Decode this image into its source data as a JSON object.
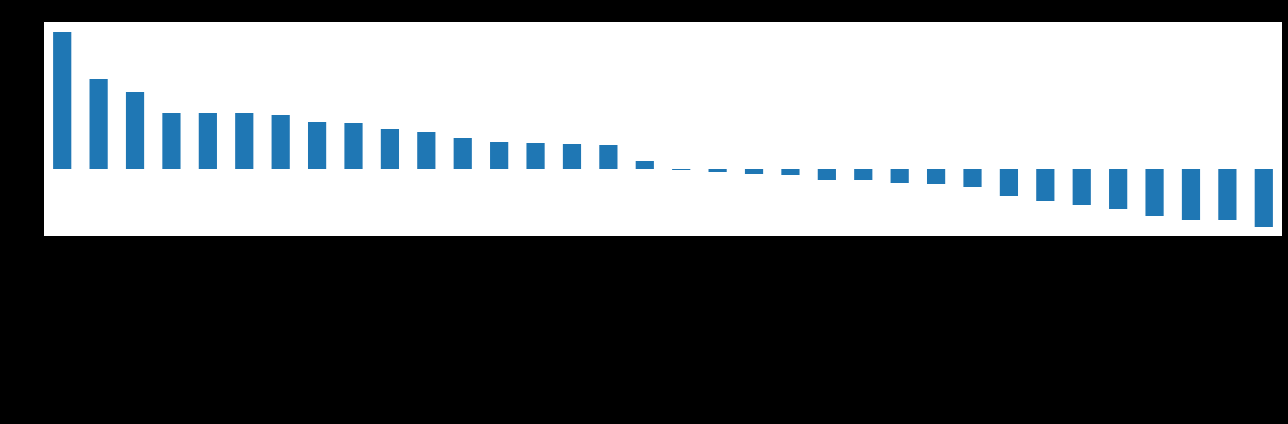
{
  "chart_data": {
    "type": "bar",
    "categories": [
      null,
      null,
      null,
      null,
      null,
      null,
      null,
      null,
      null,
      null,
      null,
      null,
      null,
      null,
      null,
      null,
      null,
      null,
      null,
      null,
      null,
      null,
      null,
      null,
      null,
      null,
      null,
      null,
      null,
      null,
      null,
      null,
      null,
      null
    ],
    "values": [
      13.7,
      9.0,
      7.7,
      5.6,
      5.6,
      5.6,
      5.4,
      4.7,
      4.6,
      4.0,
      3.7,
      3.1,
      2.7,
      2.6,
      2.5,
      2.4,
      0.8,
      -0.1,
      -0.3,
      -0.5,
      -0.6,
      -1.1,
      -1.1,
      -1.4,
      -1.5,
      -1.8,
      -2.7,
      -3.2,
      -3.6,
      -4.0,
      -4.7,
      -5.1,
      -5.1,
      -5.8
    ],
    "color": "#1f77b4",
    "ylim": [
      -6.7,
      14.7
    ]
  }
}
